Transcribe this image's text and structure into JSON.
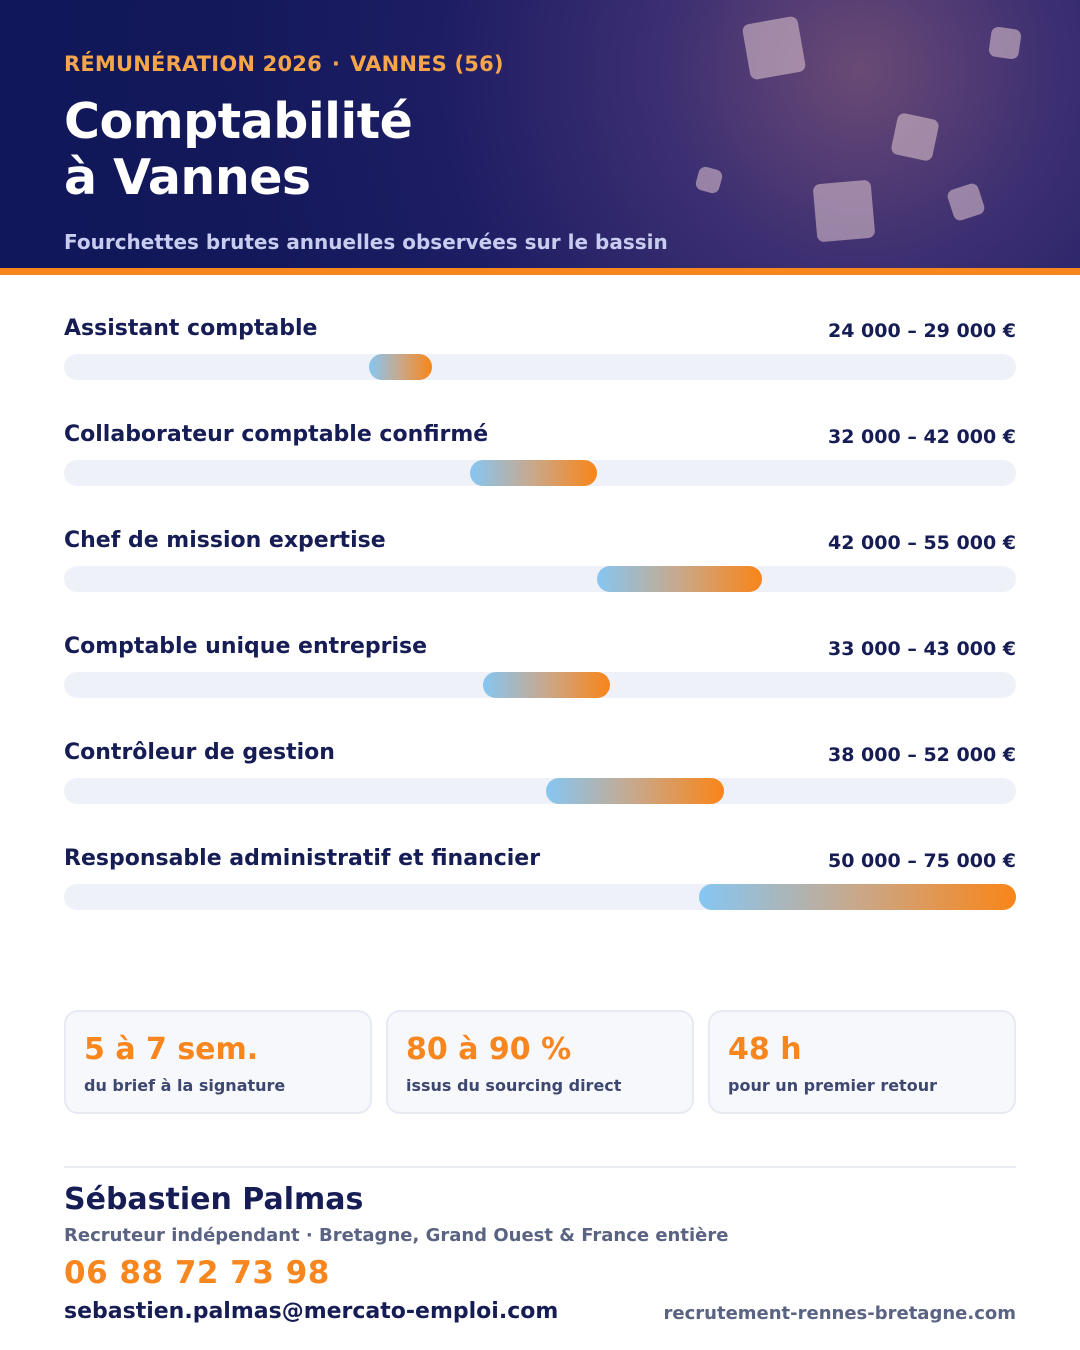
{
  "header": {
    "kicker_left": "RÉMUNÉRATION 2026",
    "kicker_sep": "·",
    "kicker_right": "VANNES (56)",
    "title_line1": "Comptabilité",
    "title_line2": "à Vannes",
    "subtitle": "Fourchettes brutes annuelles observées sur le bassin"
  },
  "chart_data": {
    "type": "bar",
    "categories": [
      "Assistant comptable",
      "Collaborateur comptable confirmé",
      "Chef de mission expertise",
      "Comptable unique entreprise",
      "Contrôleur de gestion",
      "Responsable administratif et financier"
    ],
    "series": [
      {
        "values_min": [
          24000,
          32000,
          42000,
          33000,
          38000,
          50000
        ],
        "values_max": [
          29000,
          42000,
          55000,
          43000,
          52000,
          75000
        ]
      }
    ],
    "range_labels": [
      "24 000 – 29 000 €",
      "32 000 – 42 000 €",
      "42 000 – 55 000 €",
      "33 000 – 43 000 €",
      "38 000 – 52 000 €",
      "50 000 – 75 000 €"
    ],
    "xlim": [
      0,
      75000
    ],
    "grid": false,
    "colors": {
      "bar_start": "#86c6f2",
      "bar_end": "#f98518",
      "track": "#eef1f7"
    }
  },
  "stats": [
    {
      "value": "5 à 7 sem.",
      "label": "du brief à la signature"
    },
    {
      "value": "80 à 90 %",
      "label": "issus du sourcing direct"
    },
    {
      "value": "48 h",
      "label": "pour un premier retour"
    }
  ],
  "contact": {
    "name": "Sébastien Palmas",
    "role": "Recruteur indépendant · Bretagne, Grand Ouest & France entière",
    "phone": "06 88 72 73 98",
    "email": "sebastien.palmas@mercato-emploi.com",
    "website": "recrutement-rennes-bretagne.com"
  },
  "colors": {
    "navy": "#161c54",
    "accent": "#f7861e",
    "muted": "#5a6382"
  }
}
